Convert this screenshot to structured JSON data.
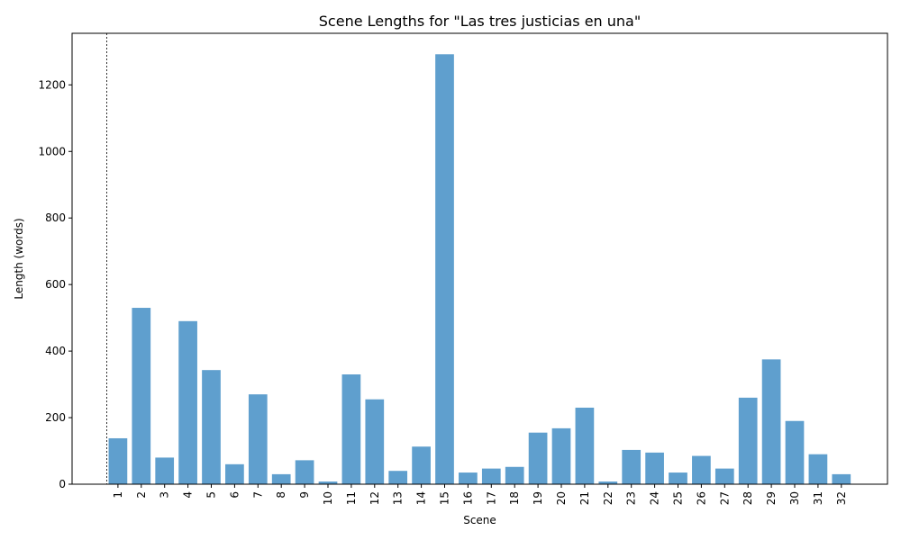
{
  "chart_data": {
    "type": "bar",
    "title": "Scene Lengths for \"Las tres justicias en una\"",
    "xlabel": "Scene",
    "ylabel": "Length (words)",
    "categories": [
      "1",
      "2",
      "3",
      "4",
      "5",
      "6",
      "7",
      "8",
      "9",
      "10",
      "11",
      "12",
      "13",
      "14",
      "15",
      "16",
      "17",
      "18",
      "19",
      "20",
      "21",
      "22",
      "23",
      "24",
      "25",
      "26",
      "27",
      "28",
      "29",
      "30",
      "31",
      "32"
    ],
    "values": [
      138,
      530,
      80,
      490,
      343,
      60,
      270,
      30,
      72,
      8,
      330,
      255,
      40,
      113,
      1292,
      35,
      47,
      52,
      155,
      168,
      230,
      8,
      103,
      95,
      35,
      85,
      47,
      260,
      375,
      190,
      90,
      30
    ],
    "ylim": [
      0,
      1355
    ],
    "yticks": [
      0,
      200,
      400,
      600,
      800,
      1000,
      1200
    ],
    "bar_color": "#5f9fce",
    "grid": false,
    "reference_line": {
      "style": "dashed",
      "color": "#000000"
    }
  }
}
